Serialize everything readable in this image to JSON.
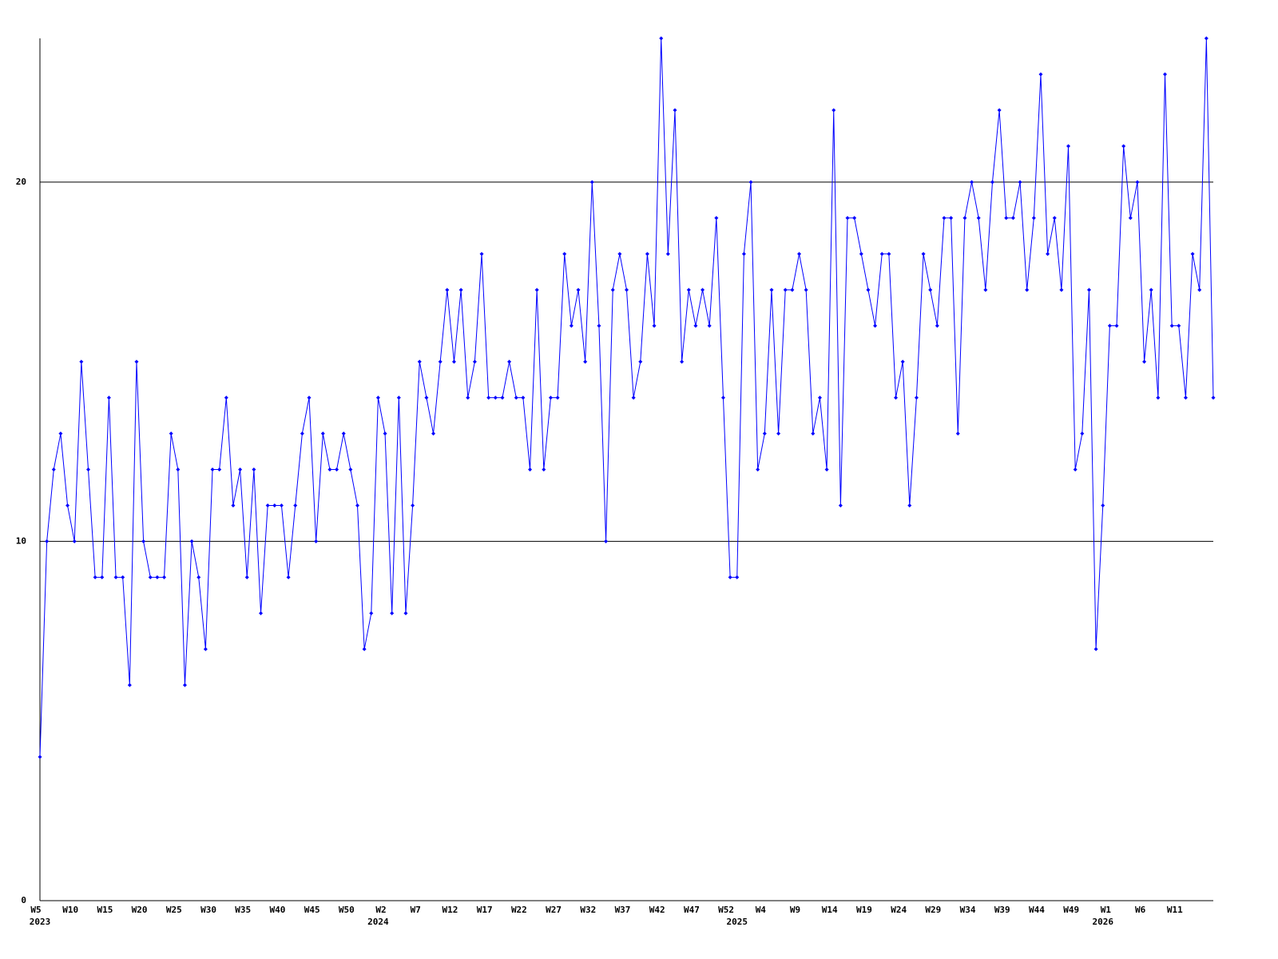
{
  "chart_data": {
    "type": "line",
    "color": "#0000ff",
    "categories": [
      "W5",
      null,
      null,
      null,
      null,
      "W10",
      null,
      null,
      null,
      null,
      "W15",
      null,
      null,
      null,
      null,
      "W20",
      null,
      null,
      null,
      null,
      "W25",
      null,
      null,
      null,
      null,
      "W30",
      null,
      null,
      null,
      null,
      "W35",
      null,
      null,
      null,
      null,
      "W40",
      null,
      null,
      null,
      null,
      "W45",
      null,
      null,
      null,
      null,
      "W50",
      null,
      null,
      null,
      null,
      "W2",
      null,
      null,
      null,
      null,
      "W7",
      null,
      null,
      null,
      null,
      "W12",
      null,
      null,
      null,
      null,
      "W17",
      null,
      null,
      null,
      null,
      "W22",
      null,
      null,
      null,
      null,
      "W27",
      null,
      null,
      null,
      null,
      "W32",
      null,
      null,
      null,
      null,
      "W37",
      null,
      null,
      null,
      null,
      "W42",
      null,
      null,
      null,
      null,
      "W47",
      null,
      null,
      null,
      null,
      "W52",
      null,
      null,
      null,
      null,
      "W4",
      null,
      null,
      null,
      null,
      "W9",
      null,
      null,
      null,
      null,
      "W14",
      null,
      null,
      null,
      null,
      "W19",
      null,
      null,
      null,
      null,
      "W24",
      null,
      null,
      null,
      null,
      "W29",
      null,
      null,
      null,
      null,
      "W34",
      null,
      null,
      null,
      null,
      "W39",
      null,
      null,
      null,
      null,
      "W44",
      null,
      null,
      null,
      null,
      "W49",
      null,
      null,
      null,
      null,
      "W1",
      null,
      null,
      null,
      null,
      "W6",
      null,
      null,
      null,
      null,
      "W11",
      null,
      null,
      null,
      null,
      null
    ],
    "year_labels": [
      {
        "label": "2023",
        "index": 0
      },
      {
        "label": "2024",
        "index": 49
      },
      {
        "label": "2025",
        "index": 101
      },
      {
        "label": "2026",
        "index": 154
      }
    ],
    "values": [
      4,
      10,
      12,
      13,
      11,
      10,
      15,
      12,
      9,
      9,
      14,
      9,
      9,
      6,
      15,
      10,
      9,
      9,
      9,
      13,
      12,
      6,
      10,
      9,
      7,
      12,
      12,
      14,
      11,
      12,
      9,
      12,
      8,
      11,
      11,
      11,
      9,
      11,
      13,
      14,
      10,
      13,
      12,
      12,
      13,
      12,
      11,
      7,
      8,
      14,
      13,
      8,
      14,
      8,
      11,
      15,
      14,
      13,
      15,
      17,
      15,
      17,
      14,
      15,
      18,
      14,
      14,
      14,
      15,
      14,
      14,
      12,
      17,
      12,
      14,
      14,
      18,
      16,
      17,
      15,
      20,
      16,
      10,
      17,
      18,
      17,
      14,
      15,
      18,
      16,
      24,
      18,
      22,
      15,
      17,
      16,
      17,
      16,
      19,
      14,
      9,
      9,
      18,
      20,
      12,
      13,
      17,
      13,
      17,
      17,
      18,
      17,
      13,
      14,
      12,
      22,
      11,
      19,
      19,
      18,
      17,
      16,
      18,
      18,
      14,
      15,
      11,
      14,
      18,
      17,
      16,
      19,
      19,
      13,
      19,
      20,
      19,
      17,
      20,
      22,
      19,
      19,
      20,
      17,
      19,
      23,
      18,
      19,
      17,
      21,
      12,
      13,
      17,
      7,
      11,
      16,
      16,
      21,
      19,
      20,
      15,
      17,
      14,
      23,
      16,
      16,
      14,
      18,
      17,
      24,
      14
    ],
    "ylim": [
      0,
      24
    ],
    "yticks": [
      0,
      10,
      20
    ],
    "grid": true
  }
}
